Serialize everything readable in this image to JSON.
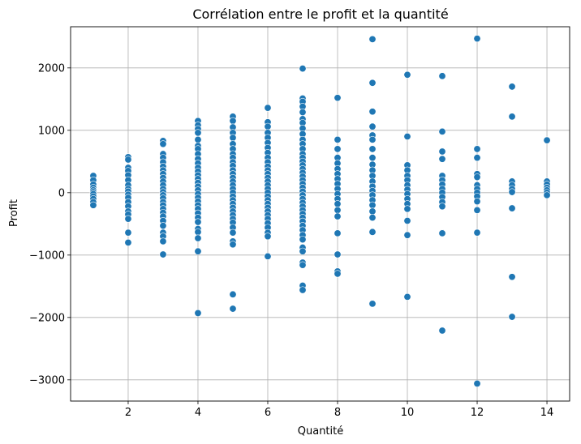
{
  "chart_data": {
    "type": "scatter",
    "title": "Corrélation entre le profit et la quantité",
    "xlabel": "Quantité",
    "ylabel": "Profit",
    "xlim": [
      0.35,
      14.65
    ],
    "ylim": [
      -3340,
      2660
    ],
    "xticks": [
      2,
      4,
      6,
      8,
      10,
      12,
      14
    ],
    "yticks": [
      -3000,
      -2000,
      -1000,
      0,
      1000,
      2000
    ],
    "xtick_labels": [
      "2",
      "4",
      "6",
      "8",
      "10",
      "12",
      "14"
    ],
    "ytick_labels": [
      "−3000",
      "−2000",
      "−1000",
      "0",
      "1000",
      "2000"
    ],
    "grid": true,
    "legend": "none",
    "marker_color": "#1f77b4",
    "series": [
      {
        "points": [
          [
            1,
            270
          ],
          [
            1,
            200
          ],
          [
            1,
            130
          ],
          [
            1,
            80
          ],
          [
            1,
            40
          ],
          [
            1,
            10
          ],
          [
            1,
            -20
          ],
          [
            1,
            -60
          ],
          [
            1,
            -100
          ],
          [
            1,
            -150
          ],
          [
            1,
            -200
          ],
          [
            2,
            570
          ],
          [
            2,
            530
          ],
          [
            2,
            400
          ],
          [
            2,
            350
          ],
          [
            2,
            280
          ],
          [
            2,
            200
          ],
          [
            2,
            120
          ],
          [
            2,
            60
          ],
          [
            2,
            20
          ],
          [
            2,
            -30
          ],
          [
            2,
            -80
          ],
          [
            2,
            -150
          ],
          [
            2,
            -220
          ],
          [
            2,
            -300
          ],
          [
            2,
            -350
          ],
          [
            2,
            -420
          ],
          [
            2,
            -640
          ],
          [
            2,
            -800
          ],
          [
            3,
            830
          ],
          [
            3,
            780
          ],
          [
            3,
            620
          ],
          [
            3,
            560
          ],
          [
            3,
            490
          ],
          [
            3,
            420
          ],
          [
            3,
            360
          ],
          [
            3,
            300
          ],
          [
            3,
            240
          ],
          [
            3,
            180
          ],
          [
            3,
            120
          ],
          [
            3,
            60
          ],
          [
            3,
            10
          ],
          [
            3,
            -40
          ],
          [
            3,
            -90
          ],
          [
            3,
            -150
          ],
          [
            3,
            -200
          ],
          [
            3,
            -260
          ],
          [
            3,
            -320
          ],
          [
            3,
            -380
          ],
          [
            3,
            -450
          ],
          [
            3,
            -530
          ],
          [
            3,
            -640
          ],
          [
            3,
            -700
          ],
          [
            3,
            -780
          ],
          [
            3,
            -990
          ],
          [
            4,
            1150
          ],
          [
            4,
            1080
          ],
          [
            4,
            1020
          ],
          [
            4,
            960
          ],
          [
            4,
            850
          ],
          [
            4,
            750
          ],
          [
            4,
            700
          ],
          [
            4,
            620
          ],
          [
            4,
            540
          ],
          [
            4,
            470
          ],
          [
            4,
            400
          ],
          [
            4,
            340
          ],
          [
            4,
            280
          ],
          [
            4,
            220
          ],
          [
            4,
            160
          ],
          [
            4,
            100
          ],
          [
            4,
            40
          ],
          [
            4,
            -20
          ],
          [
            4,
            -80
          ],
          [
            4,
            -140
          ],
          [
            4,
            -200
          ],
          [
            4,
            -260
          ],
          [
            4,
            -330
          ],
          [
            4,
            -400
          ],
          [
            4,
            -470
          ],
          [
            4,
            -580
          ],
          [
            4,
            -630
          ],
          [
            4,
            -730
          ],
          [
            4,
            -940
          ],
          [
            4,
            -1930
          ],
          [
            5,
            1220
          ],
          [
            5,
            1150
          ],
          [
            5,
            1050
          ],
          [
            5,
            960
          ],
          [
            5,
            880
          ],
          [
            5,
            780
          ],
          [
            5,
            700
          ],
          [
            5,
            620
          ],
          [
            5,
            560
          ],
          [
            5,
            490
          ],
          [
            5,
            430
          ],
          [
            5,
            360
          ],
          [
            5,
            300
          ],
          [
            5,
            240
          ],
          [
            5,
            180
          ],
          [
            5,
            120
          ],
          [
            5,
            60
          ],
          [
            5,
            0
          ],
          [
            5,
            -60
          ],
          [
            5,
            -120
          ],
          [
            5,
            -180
          ],
          [
            5,
            -240
          ],
          [
            5,
            -300
          ],
          [
            5,
            -360
          ],
          [
            5,
            -420
          ],
          [
            5,
            -480
          ],
          [
            5,
            -560
          ],
          [
            5,
            -640
          ],
          [
            5,
            -780
          ],
          [
            5,
            -830
          ],
          [
            5,
            -1630
          ],
          [
            5,
            -1860
          ],
          [
            6,
            1360
          ],
          [
            6,
            1130
          ],
          [
            6,
            1060
          ],
          [
            6,
            960
          ],
          [
            6,
            880
          ],
          [
            6,
            800
          ],
          [
            6,
            720
          ],
          [
            6,
            640
          ],
          [
            6,
            560
          ],
          [
            6,
            490
          ],
          [
            6,
            420
          ],
          [
            6,
            360
          ],
          [
            6,
            300
          ],
          [
            6,
            240
          ],
          [
            6,
            180
          ],
          [
            6,
            120
          ],
          [
            6,
            60
          ],
          [
            6,
            0
          ],
          [
            6,
            -60
          ],
          [
            6,
            -120
          ],
          [
            6,
            -180
          ],
          [
            6,
            -240
          ],
          [
            6,
            -300
          ],
          [
            6,
            -360
          ],
          [
            6,
            -420
          ],
          [
            6,
            -490
          ],
          [
            6,
            -560
          ],
          [
            6,
            -640
          ],
          [
            6,
            -700
          ],
          [
            6,
            -1020
          ],
          [
            7,
            1990
          ],
          [
            7,
            1510
          ],
          [
            7,
            1460
          ],
          [
            7,
            1380
          ],
          [
            7,
            1290
          ],
          [
            7,
            1180
          ],
          [
            7,
            1120
          ],
          [
            7,
            1030
          ],
          [
            7,
            940
          ],
          [
            7,
            850
          ],
          [
            7,
            780
          ],
          [
            7,
            700
          ],
          [
            7,
            620
          ],
          [
            7,
            560
          ],
          [
            7,
            500
          ],
          [
            7,
            440
          ],
          [
            7,
            380
          ],
          [
            7,
            320
          ],
          [
            7,
            260
          ],
          [
            7,
            200
          ],
          [
            7,
            140
          ],
          [
            7,
            80
          ],
          [
            7,
            20
          ],
          [
            7,
            -40
          ],
          [
            7,
            -100
          ],
          [
            7,
            -160
          ],
          [
            7,
            -220
          ],
          [
            7,
            -280
          ],
          [
            7,
            -340
          ],
          [
            7,
            -400
          ],
          [
            7,
            -460
          ],
          [
            7,
            -530
          ],
          [
            7,
            -600
          ],
          [
            7,
            -680
          ],
          [
            7,
            -750
          ],
          [
            7,
            -880
          ],
          [
            7,
            -940
          ],
          [
            7,
            -1120
          ],
          [
            7,
            -1160
          ],
          [
            7,
            -1490
          ],
          [
            7,
            -1560
          ],
          [
            8,
            1520
          ],
          [
            8,
            850
          ],
          [
            8,
            700
          ],
          [
            8,
            560
          ],
          [
            8,
            470
          ],
          [
            8,
            380
          ],
          [
            8,
            300
          ],
          [
            8,
            220
          ],
          [
            8,
            140
          ],
          [
            8,
            60
          ],
          [
            8,
            -20
          ],
          [
            8,
            -100
          ],
          [
            8,
            -180
          ],
          [
            8,
            -280
          ],
          [
            8,
            -380
          ],
          [
            8,
            -650
          ],
          [
            8,
            -990
          ],
          [
            8,
            -1260
          ],
          [
            8,
            -1300
          ],
          [
            9,
            2460
          ],
          [
            9,
            1760
          ],
          [
            9,
            1300
          ],
          [
            9,
            1060
          ],
          [
            9,
            920
          ],
          [
            9,
            850
          ],
          [
            9,
            700
          ],
          [
            9,
            560
          ],
          [
            9,
            450
          ],
          [
            9,
            360
          ],
          [
            9,
            270
          ],
          [
            9,
            180
          ],
          [
            9,
            100
          ],
          [
            9,
            30
          ],
          [
            9,
            -40
          ],
          [
            9,
            -120
          ],
          [
            9,
            -200
          ],
          [
            9,
            -300
          ],
          [
            9,
            -400
          ],
          [
            9,
            -630
          ],
          [
            9,
            -1780
          ],
          [
            10,
            1890
          ],
          [
            10,
            900
          ],
          [
            10,
            440
          ],
          [
            10,
            360
          ],
          [
            10,
            270
          ],
          [
            10,
            200
          ],
          [
            10,
            120
          ],
          [
            10,
            50
          ],
          [
            10,
            -20
          ],
          [
            10,
            -100
          ],
          [
            10,
            -180
          ],
          [
            10,
            -260
          ],
          [
            10,
            -450
          ],
          [
            10,
            -680
          ],
          [
            10,
            -1670
          ],
          [
            11,
            1870
          ],
          [
            11,
            980
          ],
          [
            11,
            660
          ],
          [
            11,
            540
          ],
          [
            11,
            270
          ],
          [
            11,
            200
          ],
          [
            11,
            130
          ],
          [
            11,
            60
          ],
          [
            11,
            0
          ],
          [
            11,
            -70
          ],
          [
            11,
            -150
          ],
          [
            11,
            -220
          ],
          [
            11,
            -650
          ],
          [
            11,
            -2210
          ],
          [
            12,
            2470
          ],
          [
            12,
            700
          ],
          [
            12,
            560
          ],
          [
            12,
            300
          ],
          [
            12,
            250
          ],
          [
            12,
            120
          ],
          [
            12,
            60
          ],
          [
            12,
            0
          ],
          [
            12,
            -60
          ],
          [
            12,
            -140
          ],
          [
            12,
            -280
          ],
          [
            12,
            -640
          ],
          [
            12,
            -3060
          ],
          [
            13,
            1700
          ],
          [
            13,
            1220
          ],
          [
            13,
            180
          ],
          [
            13,
            120
          ],
          [
            13,
            60
          ],
          [
            13,
            10
          ],
          [
            13,
            -250
          ],
          [
            13,
            -1350
          ],
          [
            13,
            -1990
          ],
          [
            14,
            840
          ],
          [
            14,
            180
          ],
          [
            14,
            130
          ],
          [
            14,
            80
          ],
          [
            14,
            40
          ],
          [
            14,
            0
          ],
          [
            14,
            -40
          ]
        ]
      }
    ]
  }
}
